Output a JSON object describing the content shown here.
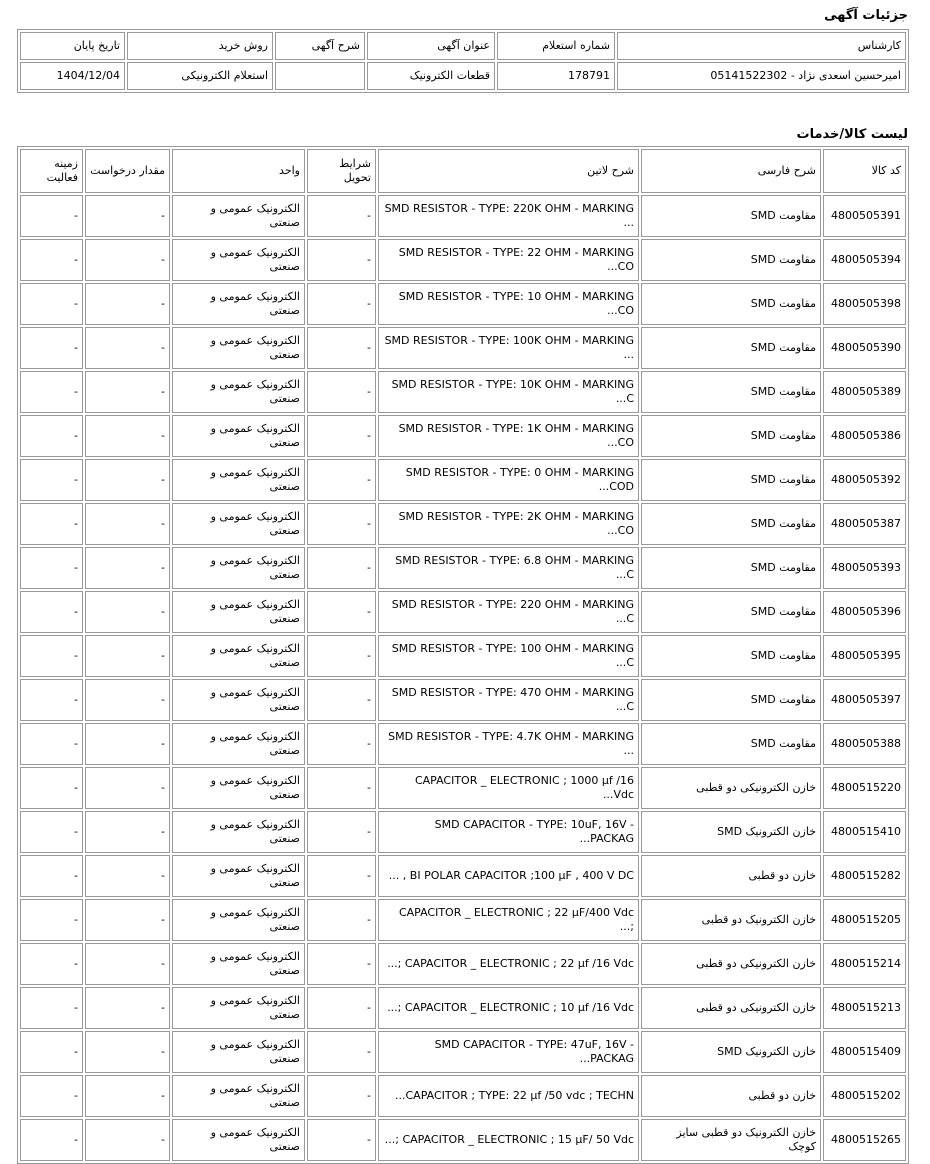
{
  "details": {
    "title": "جزئیات آگهی",
    "headers": [
      "کارشناس",
      "شماره استعلام",
      "عنوان آگهی",
      "شرح آگهی",
      "روش خرید",
      "تاریخ پایان"
    ],
    "values": [
      "امیرحسین اسعدی نژاد - 05141522302",
      "178791",
      "قطعات الکترونیک",
      "",
      "استعلام الکترونیکی",
      "1404/12/04"
    ]
  },
  "list": {
    "title": "لیست کالا/خدمات",
    "headers": [
      "کد کالا",
      "شرح فارسی",
      "شرح لاتین",
      "شرایط تحویل",
      "واحد",
      "مقدار درخواست",
      "زمینه فعالیت"
    ],
    "rows": [
      [
        "4800505391",
        "مقاومت SMD",
        "SMD RESISTOR - TYPE: 220K OHM - MARKING ...",
        "-",
        "الکترونیک عمومی و صنعتی",
        "-",
        "-"
      ],
      [
        "4800505394",
        "مقاومت SMD",
        "SMD RESISTOR - TYPE: 22 OHM - MARKING CO...",
        "-",
        "الکترونیک عمومی و صنعتی",
        "-",
        "-"
      ],
      [
        "4800505398",
        "مقاومت SMD",
        "SMD RESISTOR - TYPE: 10 OHM - MARKING CO...",
        "-",
        "الکترونیک عمومی و صنعتی",
        "-",
        "-"
      ],
      [
        "4800505390",
        "مقاومت SMD",
        "SMD RESISTOR - TYPE: 100K OHM - MARKING ...",
        "-",
        "الکترونیک عمومی و صنعتی",
        "-",
        "-"
      ],
      [
        "4800505389",
        "مقاومت SMD",
        "SMD RESISTOR - TYPE: 10K OHM - MARKING C...",
        "-",
        "الکترونیک عمومی و صنعتی",
        "-",
        "-"
      ],
      [
        "4800505386",
        "مقاومت SMD",
        "SMD RESISTOR - TYPE: 1K OHM - MARKING CO...",
        "-",
        "الکترونیک عمومی و صنعتی",
        "-",
        "-"
      ],
      [
        "4800505392",
        "مقاومت SMD",
        "SMD RESISTOR - TYPE: 0 OHM - MARKING COD...",
        "-",
        "الکترونیک عمومی و صنعتی",
        "-",
        "-"
      ],
      [
        "4800505387",
        "مقاومت SMD",
        "SMD RESISTOR - TYPE: 2K OHM - MARKING CO...",
        "-",
        "الکترونیک عمومی و صنعتی",
        "-",
        "-"
      ],
      [
        "4800505393",
        "مقاومت SMD",
        "SMD RESISTOR - TYPE: 6.8 OHM - MARKING C...",
        "-",
        "الکترونیک عمومی و صنعتی",
        "-",
        "-"
      ],
      [
        "4800505396",
        "مقاومت SMD",
        "SMD RESISTOR - TYPE: 220 OHM - MARKING C...",
        "-",
        "الکترونیک عمومی و صنعتی",
        "-",
        "-"
      ],
      [
        "4800505395",
        "مقاومت SMD",
        "SMD RESISTOR - TYPE: 100 OHM - MARKING C...",
        "-",
        "الکترونیک عمومی و صنعتی",
        "-",
        "-"
      ],
      [
        "4800505397",
        "مقاومت SMD",
        "SMD RESISTOR - TYPE: 470 OHM - MARKING C...",
        "-",
        "الکترونیک عمومی و صنعتی",
        "-",
        "-"
      ],
      [
        "4800505388",
        "مقاومت SMD",
        "SMD RESISTOR - TYPE: 4.7K OHM - MARKING ...",
        "-",
        "الکترونیک عمومی و صنعتی",
        "-",
        "-"
      ],
      [
        "4800515220",
        "خازن الکترونیکی دو قطبی",
        "CAPACITOR _ ELECTRONIC ; 1000 µf /16 Vdc...",
        "-",
        "الکترونیک عمومی و صنعتی",
        "-",
        "-"
      ],
      [
        "4800515410",
        "خازن الکترونیک SMD",
        "SMD CAPACITOR - TYPE: 10uF, 16V - PACKAG...",
        "-",
        "الکترونیک عمومی و صنعتی",
        "-",
        "-"
      ],
      [
        "4800515282",
        "خازن دو قطبی",
        "BI POLAR CAPACITOR ;100 µF , 400 V DC , ...",
        "-",
        "الکترونیک عمومی و صنعتی",
        "-",
        "-"
      ],
      [
        "4800515205",
        "خازن الکترونیک دو قطبی",
        "CAPACITOR _ ELECTRONIC ; 22 µF/400 Vdc ;...",
        "-",
        "الکترونیک عمومی و صنعتی",
        "-",
        "-"
      ],
      [
        "4800515214",
        "خازن الکترونیکی دو قطبی",
        "CAPACITOR _ ELECTRONIC ; 22 µf /16 Vdc ;...",
        "-",
        "الکترونیک عمومی و صنعتی",
        "-",
        "-"
      ],
      [
        "4800515213",
        "خازن الکترونیکی دو قطبی",
        "CAPACITOR _ ELECTRONIC ; 10 µf /16 Vdc ;...",
        "-",
        "الکترونیک عمومی و صنعتی",
        "-",
        "-"
      ],
      [
        "4800515409",
        "خازن الکترونیک SMD",
        "SMD CAPACITOR - TYPE: 47uF, 16V - PACKAG...",
        "-",
        "الکترونیک عمومی و صنعتی",
        "-",
        "-"
      ],
      [
        "4800515202",
        "خازن دو قطبی",
        "CAPACITOR ; TYPE: 22 µf /50 vdc ; TECHN...",
        "-",
        "الکترونیک عمومی و صنعتی",
        "-",
        "-"
      ],
      [
        "4800515265",
        "خازن الکترونیک دو قطبی سایز کوچک",
        "CAPACITOR _ ELECTRONIC ; 15 µF/ 50 Vdc ;...",
        "-",
        "الکترونیک عمومی و صنعتی",
        "-",
        "-"
      ]
    ]
  }
}
